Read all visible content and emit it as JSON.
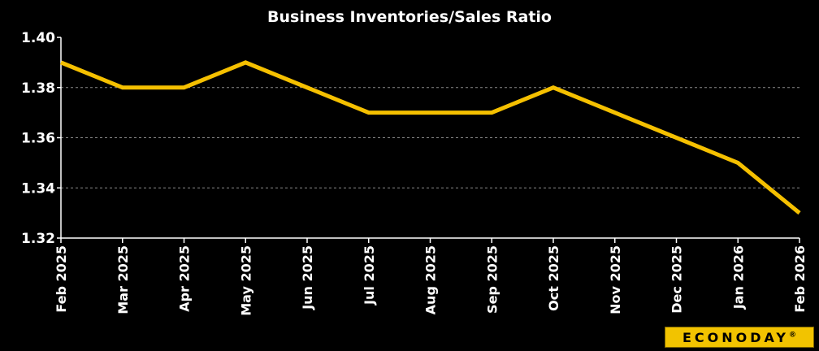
{
  "chart_data": {
    "type": "line",
    "title": "Business Inventories/Sales  Ratio",
    "categories": [
      "Feb 2025",
      "Mar 2025",
      "Apr 2025",
      "May 2025",
      "Jun 2025",
      "Jul 2025",
      "Aug 2025",
      "Sep 2025",
      "Oct 2025",
      "Nov 2025",
      "Dec 2025",
      "Jan 2026",
      "Feb 2026"
    ],
    "values": [
      1.39,
      1.38,
      1.38,
      1.39,
      1.38,
      1.37,
      1.37,
      1.37,
      1.38,
      1.37,
      1.36,
      1.35,
      1.33
    ],
    "ylim": [
      1.32,
      1.4
    ],
    "yticks": [
      "1.32",
      "1.34",
      "1.36",
      "1.38",
      "1.40"
    ],
    "grid": true,
    "line_color": "#f5c000",
    "background": "#000000",
    "grid_color": "#8a8a8a"
  },
  "logo": {
    "text": "ECONODAY",
    "mark": "®"
  }
}
